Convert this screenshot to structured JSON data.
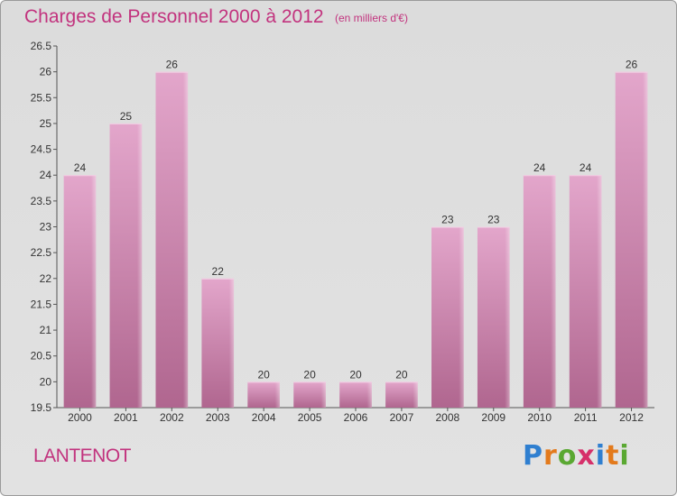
{
  "header": {
    "title": "Charges de Personnel 2000 à 2012",
    "subtitle": "(en milliers d'€)"
  },
  "footer": {
    "commune": "LANTENOT",
    "logo": "Proxiti",
    "logo_colors": [
      "#2f7fd0",
      "#e37a1c",
      "#5aa832",
      "#d6306a",
      "#2f7fd0",
      "#e37a1c",
      "#5aa832"
    ]
  },
  "colors": {
    "accent": "#c2337e",
    "bar_top": "#e3a6cb",
    "bar_bottom": "#b0668f"
  },
  "chart_data": {
    "type": "bar",
    "categories": [
      "2000",
      "2001",
      "2002",
      "2003",
      "2004",
      "2005",
      "2006",
      "2007",
      "2008",
      "2009",
      "2010",
      "2011",
      "2012"
    ],
    "values": [
      24,
      25,
      26,
      22,
      20,
      20,
      20,
      20,
      23,
      23,
      24,
      24,
      26
    ],
    "data_labels": [
      "24",
      "25",
      "26",
      "22",
      "20",
      "20",
      "20",
      "20",
      "23",
      "23",
      "24",
      "24",
      "26"
    ],
    "title": "Charges de Personnel 2000 à 2012",
    "subtitle": "(en milliers d'€)",
    "xlabel": "",
    "ylabel": "",
    "ylim": [
      19.5,
      26.5
    ],
    "yticks": [
      "19.5",
      "20",
      "20.5",
      "21",
      "21.5",
      "22",
      "22.5",
      "23",
      "23.5",
      "24",
      "24.5",
      "25",
      "25.5",
      "26",
      "26.5"
    ],
    "grid": false,
    "legend": "none"
  }
}
